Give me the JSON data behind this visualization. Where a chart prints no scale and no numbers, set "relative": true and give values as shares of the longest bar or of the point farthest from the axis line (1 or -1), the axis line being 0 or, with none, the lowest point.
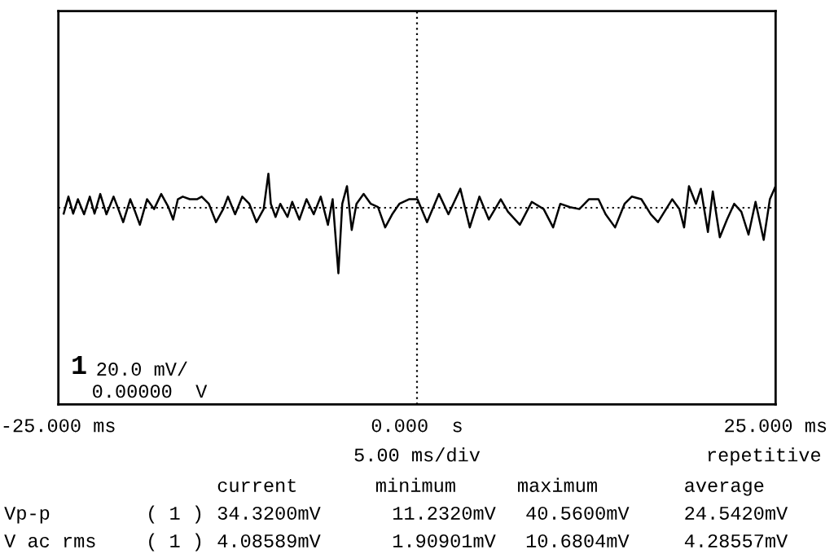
{
  "chart_data": {
    "type": "line",
    "relative": true,
    "x": [
      -24.63,
      -24.3,
      -23.97,
      -23.64,
      -23.21,
      -22.81,
      -22.48,
      -22.08,
      -21.65,
      -21.15,
      -20.82,
      -20.48,
      -19.99,
      -19.65,
      -19.32,
      -18.82,
      -18.33,
      -17.83,
      -17.33,
      -17.0,
      -16.67,
      -16.33,
      -15.84,
      -15.34,
      -15.01,
      -14.51,
      -14.01,
      -13.51,
      -13.18,
      -12.68,
      -12.18,
      -11.69,
      -11.19,
      -10.69,
      -10.36,
      -10.19,
      -9.86,
      -9.53,
      -9.03,
      -8.7,
      -8.2,
      -7.7,
      -7.2,
      -6.71,
      -6.21,
      -5.88,
      -5.48,
      -5.21,
      -4.88,
      -4.55,
      -4.22,
      -3.72,
      -3.22,
      -2.72,
      -2.22,
      -1.73,
      -1.23,
      -0.56,
      0.03,
      0.7,
      1.53,
      2.19,
      3.02,
      3.68,
      4.35,
      5.01,
      5.84,
      6.34,
      7.17,
      8.0,
      8.83,
      9.49,
      9.99,
      10.66,
      11.32,
      11.98,
      12.65,
      13.15,
      13.81,
      14.47,
      14.97,
      15.64,
      16.3,
      16.8,
      17.79,
      18.29,
      18.62,
      18.96,
      19.45,
      19.79,
      20.28,
      20.62,
      21.11,
      21.61,
      22.11,
      22.61,
      23.11,
      23.6,
      24.17,
      24.6,
      25.0
    ],
    "values": [
      -0.09,
      0.17,
      -0.09,
      0.13,
      -0.1,
      0.17,
      -0.09,
      0.21,
      -0.1,
      0.17,
      -0.02,
      -0.22,
      0.13,
      -0.06,
      -0.26,
      0.13,
      -0.02,
      0.21,
      0.01,
      -0.18,
      0.13,
      0.17,
      0.13,
      0.13,
      0.17,
      0.06,
      -0.22,
      -0.02,
      0.17,
      -0.1,
      0.17,
      0.06,
      -0.22,
      -0.02,
      0.52,
      0.06,
      -0.14,
      0.06,
      -0.14,
      0.09,
      -0.18,
      0.13,
      -0.1,
      0.17,
      -0.26,
      0.13,
      -1,
      0.06,
      0.33,
      -0.34,
      0.06,
      0.21,
      0.06,
      0.01,
      -0.3,
      -0.1,
      0.06,
      0.13,
      0.13,
      -0.22,
      0.21,
      -0.1,
      0.29,
      -0.3,
      0.17,
      -0.18,
      0.13,
      -0.06,
      -0.26,
      0.09,
      -0.02,
      -0.3,
      0.06,
      0.01,
      -0.02,
      0.13,
      0.13,
      -0.1,
      -0.3,
      0.06,
      0.17,
      0.13,
      -0.1,
      -0.22,
      0.13,
      -0.02,
      -0.3,
      0.33,
      0.06,
      0.29,
      -0.37,
      0.25,
      -0.45,
      -0.18,
      0.06,
      -0.06,
      -0.41,
      0.09,
      -0.49,
      0.13,
      0.33
    ],
    "color": "#000000",
    "xlim": [
      -25,
      25
    ],
    "xticks": [
      {
        "value": -25,
        "label": "-25.000 ms"
      },
      {
        "value": 0,
        "label": "0.000  s"
      },
      {
        "value": 25,
        "label": "25.000 ms"
      }
    ],
    "tick_labels": "x",
    "grid": "x",
    "marker": "none",
    "line_style": "solid",
    "annotations": [
      "1",
      "20.0 mV/",
      "0.00000  V",
      "5.00 ms/div",
      "repetitive",
      "current",
      "minimum",
      "maximum",
      "average",
      "Vp-p",
      "( 1 )",
      "34.3200mV",
      "11.2320mV",
      "40.5600mV",
      "24.5420mV",
      "V ac rms",
      "( 1 )",
      "4.08589mV",
      "1.90901mV",
      "10.6804mV",
      "4.28557mV"
    ]
  }
}
